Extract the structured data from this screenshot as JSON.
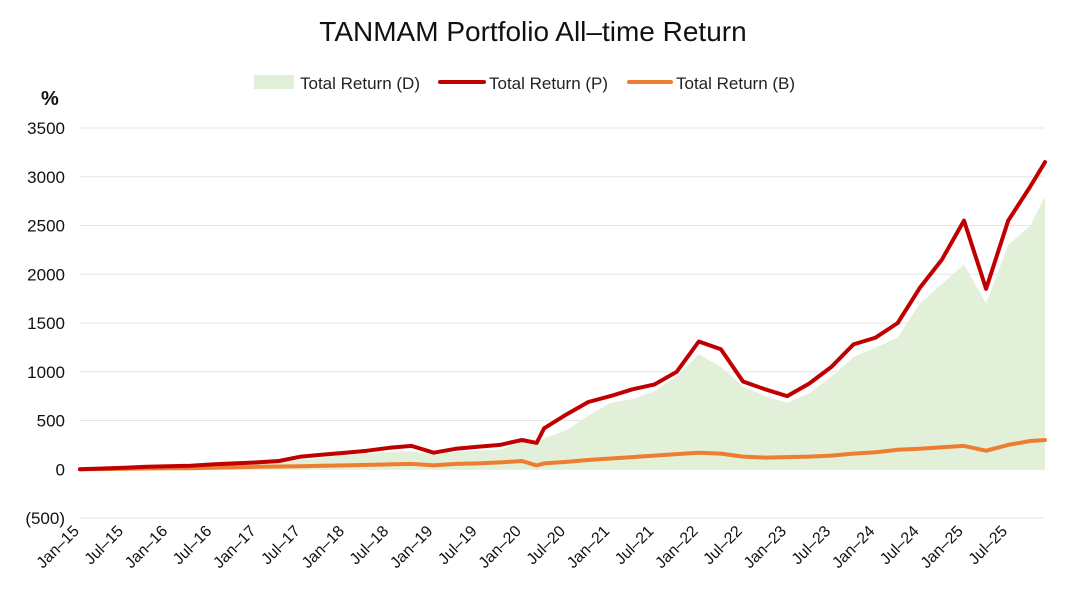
{
  "chart_data": {
    "type": "area",
    "title": "TANMAM Portfolio All–time Return",
    "ylabel": "%",
    "ylim": [
      -500,
      3500
    ],
    "grid": true,
    "legend_position": "top",
    "y_ticks": [
      {
        "value": 3500,
        "label": "3500"
      },
      {
        "value": 3000,
        "label": "3000"
      },
      {
        "value": 2500,
        "label": "2500"
      },
      {
        "value": 2000,
        "label": "2000"
      },
      {
        "value": 1500,
        "label": "1500"
      },
      {
        "value": 1000,
        "label": "1000"
      },
      {
        "value": 500,
        "label": "500"
      },
      {
        "value": 0,
        "label": "0"
      },
      {
        "value": -500,
        "label": "(500)",
        "color": "#d00000"
      }
    ],
    "x_ticks": [
      "Jan–15",
      "Jul–15",
      "Jan–16",
      "Jul–16",
      "Jan–17",
      "Jul–17",
      "Jan–18",
      "Jul–18",
      "Jan–19",
      "Jul–19",
      "Jan–20",
      "Jul–20",
      "Jan–21",
      "Jul–21",
      "Jan–22",
      "Jul–22",
      "Jan–23",
      "Jul–23",
      "Jan–24",
      "Jul–24",
      "Jan–25",
      "Jul–25"
    ],
    "x_range": [
      "Jan–15",
      "Dec–25"
    ],
    "x": [
      "Jan–15",
      "Apr–15",
      "Jul–15",
      "Oct–15",
      "Jan–16",
      "Apr–16",
      "Jul–16",
      "Oct–16",
      "Jan–17",
      "Apr–17",
      "Jul–17",
      "Oct–17",
      "Jan–18",
      "Apr–18",
      "Jul–18",
      "Oct–18",
      "Jan–19",
      "Apr–19",
      "Jul–19",
      "Oct–19",
      "Jan–20",
      "Mar–20",
      "Apr–20",
      "Jul–20",
      "Oct–20",
      "Jan–21",
      "Apr–21",
      "Jul–21",
      "Oct–21",
      "Jan–22",
      "Apr–22",
      "Jul–22",
      "Oct–22",
      "Jan–23",
      "Apr–23",
      "Jul–23",
      "Oct–23",
      "Jan–24",
      "Apr–24",
      "Jul–24",
      "Oct–24",
      "Jan–25",
      "Apr–25",
      "Jul–25",
      "Oct–25",
      "Dec–25"
    ],
    "series": [
      {
        "name": "Total Return (D)",
        "kind": "area",
        "color": "#e2efd9",
        "values": [
          0,
          5,
          10,
          15,
          20,
          25,
          35,
          45,
          55,
          70,
          100,
          120,
          150,
          160,
          180,
          185,
          150,
          180,
          190,
          200,
          280,
          250,
          320,
          400,
          550,
          680,
          720,
          800,
          950,
          1180,
          1050,
          850,
          750,
          680,
          780,
          950,
          1150,
          1250,
          1350,
          1700,
          1900,
          2100,
          1700,
          2300,
          2500,
          2800
        ]
      },
      {
        "name": "Total Return (P)",
        "kind": "line",
        "color": "#c00000",
        "values": [
          0,
          8,
          15,
          25,
          30,
          35,
          50,
          60,
          70,
          85,
          130,
          150,
          170,
          190,
          220,
          240,
          170,
          210,
          230,
          250,
          300,
          270,
          420,
          560,
          690,
          750,
          820,
          870,
          1000,
          1310,
          1230,
          900,
          820,
          750,
          880,
          1050,
          1280,
          1350,
          1500,
          1860,
          2150,
          2550,
          1850,
          2550,
          2900,
          3150
        ]
      },
      {
        "name": "Total Return (B)",
        "kind": "line",
        "color": "#ed7d31",
        "values": [
          0,
          2,
          5,
          8,
          10,
          10,
          15,
          20,
          25,
          28,
          30,
          35,
          40,
          45,
          50,
          55,
          40,
          55,
          60,
          70,
          85,
          40,
          60,
          75,
          95,
          110,
          125,
          140,
          155,
          170,
          160,
          130,
          120,
          125,
          130,
          140,
          160,
          175,
          200,
          210,
          225,
          240,
          190,
          250,
          290,
          300
        ]
      }
    ]
  }
}
